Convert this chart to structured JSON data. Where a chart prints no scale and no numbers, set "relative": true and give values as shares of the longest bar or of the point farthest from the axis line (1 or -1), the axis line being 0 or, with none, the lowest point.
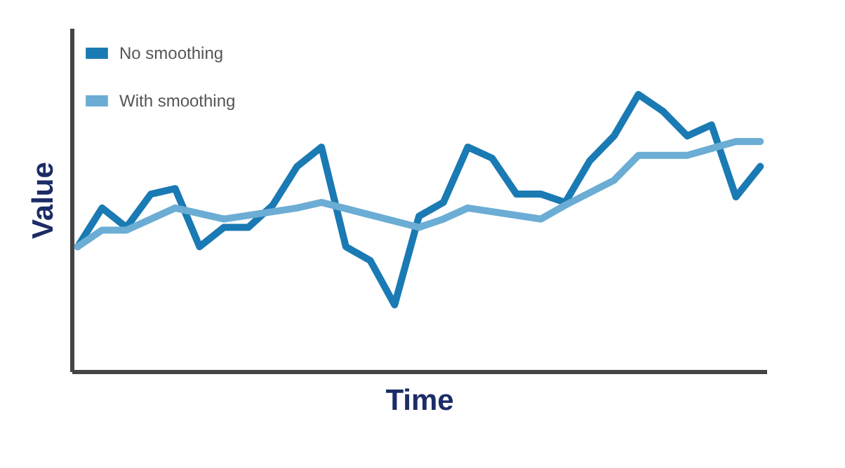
{
  "chart_data": {
    "type": "line",
    "xlabel": "Time",
    "ylabel": "Value",
    "relative": true,
    "legend": "top left",
    "categories": [
      null,
      null,
      null,
      null,
      null,
      null,
      null,
      null,
      null,
      null,
      null,
      null,
      null,
      null,
      null,
      null,
      null,
      null,
      null,
      null,
      null,
      null,
      null,
      null,
      null,
      null,
      null,
      null,
      null
    ],
    "series": [
      {
        "name": "No smoothing",
        "color": "#1a7ab3",
        "values": [
          0.45,
          0.59,
          0.52,
          0.64,
          0.66,
          0.45,
          0.52,
          0.52,
          0.6,
          0.74,
          0.81,
          0.45,
          0.4,
          0.24,
          0.56,
          0.61,
          0.81,
          0.77,
          0.64,
          0.64,
          0.61,
          0.76,
          0.85,
          1,
          0.94,
          0.85,
          0.89,
          0.63,
          0.74
        ]
      },
      {
        "name": "With smoothing",
        "color": "#6badd4",
        "values": [
          0.45,
          0.51,
          0.51,
          null,
          0.59,
          null,
          0.55,
          null,
          null,
          0.59,
          0.61,
          null,
          null,
          null,
          0.52,
          0.55,
          0.59,
          null,
          null,
          0.55,
          0.6,
          null,
          0.69,
          0.78,
          null,
          0.78,
          null,
          0.83,
          0.83
        ]
      }
    ]
  }
}
